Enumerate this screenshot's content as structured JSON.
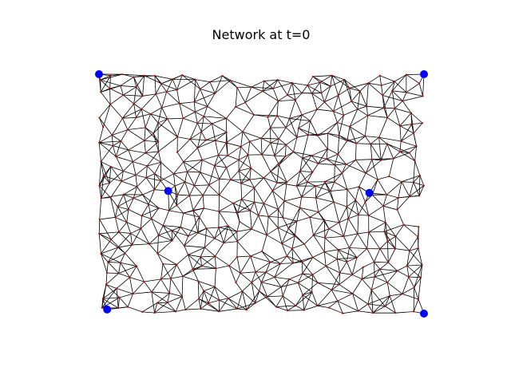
{
  "chart_data": {
    "type": "network",
    "title": "Network at t=0",
    "xlim": [
      0,
      1
    ],
    "ylim": [
      0,
      1
    ],
    "axes_visible": false,
    "grid": false,
    "node_color": "#cc0000",
    "edge_color": "#000000",
    "anchor_color": "#0000ff",
    "random_nodes": {
      "count": 460,
      "seed": 7,
      "min_spacing": 0.028,
      "connect_radius": 0.075,
      "max_degree": 6
    },
    "anchor_nodes": [
      {
        "x": 0.0,
        "y": 1.0
      },
      {
        "x": 1.0,
        "y": 1.0
      },
      {
        "x": 0.213,
        "y": 0.512
      },
      {
        "x": 0.832,
        "y": 0.504
      },
      {
        "x": 0.025,
        "y": 0.017
      },
      {
        "x": 1.0,
        "y": 0.0
      }
    ]
  }
}
